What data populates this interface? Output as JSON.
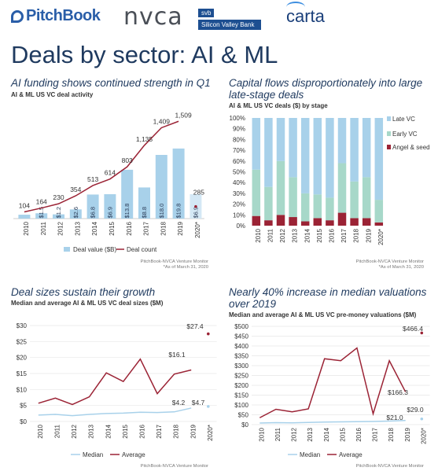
{
  "logos": {
    "pitchbook": "PitchBook",
    "nvca": "nvca",
    "svb_top": "svb",
    "svb_bottom": "Silicon Valley Bank",
    "carta": "carta"
  },
  "main_title": "Deals by sector: AI & ML",
  "colors": {
    "light_blue": "#a8d1ea",
    "dark_red": "#9b2335",
    "teal": "#a7d8c9",
    "early_vc": "#4f9e8f",
    "title_blue": "#1f3a5f"
  },
  "panels": {
    "tl": {
      "title": "AI funding shows continued strength in Q1",
      "subtitle": "AI & ML US VC deal activity",
      "source": "PitchBook-NVCA Venture Monitor",
      "note": "*As of March 31, 2020"
    },
    "tr": {
      "title_line1": "Capital flows disproportionately into large",
      "title_line2": "late-stage deals",
      "subtitle": "AI & ML US VC deals ($) by stage",
      "source": "PitchBook-NVCA Venture Monitor",
      "note": "*As of March 31, 2020"
    },
    "bl": {
      "title": "Deal sizes sustain their growth",
      "subtitle": "Median and average AI & ML US VC deal sizes ($M)",
      "source": "PitchBook-NVCA Venture Monitor"
    },
    "br": {
      "title_line1": "Nearly 40% increase in median valuations",
      "title_line2": "over 2019",
      "subtitle": "Median and average AI & ML US VC pre-money valuations ($M)",
      "source": "PitchBook-NVCA Venture Monitor"
    }
  },
  "chart_data": [
    {
      "type": "bar",
      "categories": [
        "2010",
        "2011",
        "2012",
        "2013",
        "2014",
        "2015",
        "2016",
        "2017",
        "2018",
        "2019",
        "2020*"
      ],
      "series": [
        {
          "name": "Deal value ($B)",
          "values": [
            1.1,
            1.5,
            1.2,
            2.6,
            6.8,
            6.9,
            13.8,
            8.8,
            18.0,
            19.8,
            6.9
          ],
          "labels": [
            "",
            "$1.5",
            "$1.2",
            "$2.6",
            "$6.8",
            "$6.9",
            "$13.8",
            "$8.8",
            "$18.0",
            "$19.8",
            "$6.9"
          ]
        },
        {
          "name": "Deal count",
          "values": [
            104,
            164,
            230,
            354,
            513,
            614,
            803,
            1135,
            1409,
            1509,
            285
          ],
          "labels": [
            "104",
            "164",
            "230",
            "354",
            "513",
            "614",
            "803",
            "1,135",
            "1,409",
            "1,509",
            "285"
          ]
        }
      ]
    },
    {
      "type": "bar",
      "stacked": true,
      "categories": [
        "2010",
        "2011",
        "2012",
        "2013",
        "2014",
        "2015",
        "2016",
        "2017",
        "2018",
        "2019",
        "2020*"
      ],
      "yticks": [
        "0%",
        "10%",
        "20%",
        "30%",
        "40%",
        "50%",
        "60%",
        "70%",
        "80%",
        "90%",
        "100%"
      ],
      "series": [
        {
          "name": "Angel & seed",
          "values": [
            9,
            5,
            10,
            8,
            4,
            7,
            5,
            12,
            7,
            7,
            3
          ]
        },
        {
          "name": "Early VC",
          "values": [
            43,
            31,
            50,
            37,
            26,
            22,
            21,
            46,
            34,
            38,
            21
          ]
        },
        {
          "name": "Late VC",
          "values": [
            48,
            64,
            40,
            55,
            70,
            71,
            74,
            42,
            59,
            55,
            76
          ]
        }
      ]
    },
    {
      "type": "line",
      "categories": [
        "2010",
        "2011",
        "2012",
        "2013",
        "2014",
        "2015",
        "2016",
        "2017",
        "2018",
        "2019",
        "2020*"
      ],
      "yticks": [
        "$0",
        "$5",
        "$10",
        "$15",
        "$20",
        "$25",
        "$30"
      ],
      "ylim": [
        0,
        30
      ],
      "series": [
        {
          "name": "Median",
          "values": [
            2.0,
            2.2,
            1.8,
            2.2,
            2.5,
            2.6,
            2.9,
            2.8,
            3.0,
            4.2,
            4.7
          ]
        },
        {
          "name": "Average",
          "values": [
            5.7,
            7.3,
            5.3,
            7.7,
            15.2,
            12.5,
            19.5,
            8.7,
            14.8,
            16.1,
            27.4
          ]
        }
      ],
      "labels": {
        "median_2019": "$4.2",
        "median_2020": "$4.7",
        "average_2019": "$16.1",
        "average_2020": "$27.4"
      }
    },
    {
      "type": "line",
      "categories": [
        "2010",
        "2011",
        "2012",
        "2013",
        "2014",
        "2015",
        "2016",
        "2017",
        "2018",
        "2019",
        "2020*"
      ],
      "yticks": [
        "$0",
        "$50",
        "$100",
        "$150",
        "$200",
        "$250",
        "$300",
        "$350",
        "$400",
        "$450",
        "$500"
      ],
      "ylim": [
        0,
        500
      ],
      "series": [
        {
          "name": "Median",
          "values": [
            8,
            10,
            9,
            11,
            13,
            14,
            15,
            16,
            18,
            21.0,
            29.0
          ]
        },
        {
          "name": "Average",
          "values": [
            35,
            78,
            65,
            80,
            335,
            325,
            390,
            55,
            325,
            166.3,
            466.4
          ]
        }
      ],
      "labels": {
        "median_2019": "$21.0",
        "median_2020": "$29.0",
        "average_2019": "$166.3",
        "average_2020": "$466.4"
      }
    }
  ]
}
